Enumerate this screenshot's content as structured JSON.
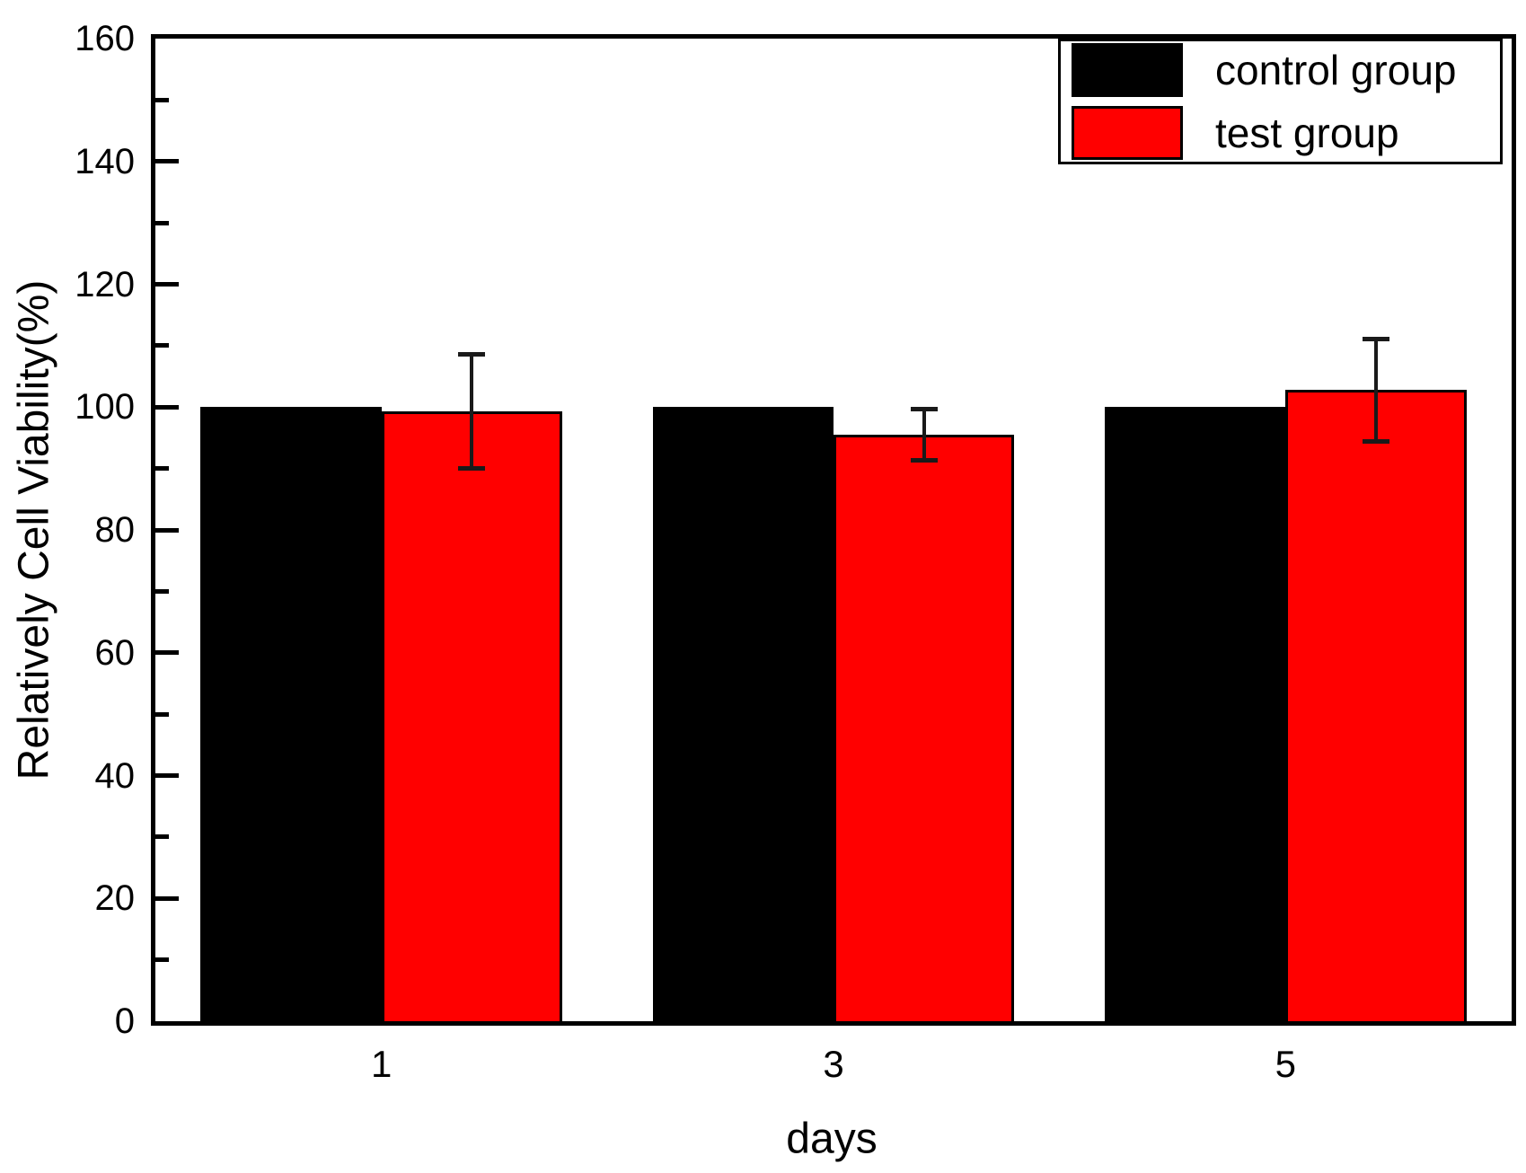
{
  "chart_data": {
    "type": "bar",
    "title": "",
    "xlabel": "days",
    "ylabel": "Relatively Cell Viability(%)",
    "categories": [
      "1",
      "3",
      "5"
    ],
    "series": [
      {
        "name": "control group",
        "color": "#000000",
        "values": [
          100,
          100,
          100
        ],
        "errors": [
          0,
          0,
          0
        ]
      },
      {
        "name": "test group",
        "color": "#ff0000",
        "values": [
          99.3,
          95.5,
          102.8
        ],
        "errors": [
          9.4,
          4.2,
          8.4
        ]
      }
    ],
    "ylim": [
      0,
      160
    ],
    "y_major_step": 20,
    "y_minor_step": 10,
    "y_tick_labels": [
      "0",
      "20",
      "40",
      "60",
      "80",
      "100",
      "120",
      "140",
      "160"
    ],
    "grid": false,
    "legend_position": "top-right",
    "bar_outline_color": "#000000",
    "error_bar_color": "#1a1a1a",
    "frame_color": "#000000",
    "background_color": "#ffffff"
  }
}
